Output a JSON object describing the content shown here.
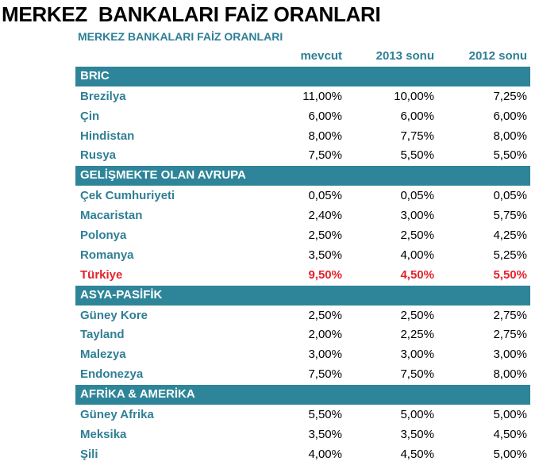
{
  "page_title": "MERKEZ  BANKALARI FAİZ ORANLARI",
  "table_title": "MERKEZ BANKALARI FAİZ ORANLARI",
  "columns": [
    "mevcut",
    "2013 sonu",
    "2012 sonu"
  ],
  "colors": {
    "header_band": "#2e8599",
    "label_text": "#2f7f95",
    "highlight": "#e5222b"
  },
  "groups": [
    {
      "name": "BRIC",
      "rows": [
        {
          "country": "Brezilya",
          "values": [
            "11,00%",
            "10,00%",
            "7,25%"
          ]
        },
        {
          "country": "Çin",
          "values": [
            "6,00%",
            "6,00%",
            "6,00%"
          ]
        },
        {
          "country": "Hindistan",
          "values": [
            "8,00%",
            "7,75%",
            "8,00%"
          ]
        },
        {
          "country": "Rusya",
          "values": [
            "7,50%",
            "5,50%",
            "5,50%"
          ]
        }
      ]
    },
    {
      "name": "GELİŞMEKTE OLAN AVRUPA",
      "rows": [
        {
          "country": "Çek Cumhuriyeti",
          "values": [
            "0,05%",
            "0,05%",
            "0,05%"
          ]
        },
        {
          "country": "Macaristan",
          "values": [
            "2,40%",
            "3,00%",
            "5,75%"
          ]
        },
        {
          "country": "Polonya",
          "values": [
            "2,50%",
            "2,50%",
            "4,25%"
          ]
        },
        {
          "country": "Romanya",
          "values": [
            "3,50%",
            "4,00%",
            "5,25%"
          ]
        },
        {
          "country": "Türkiye",
          "values": [
            "9,50%",
            "4,50%",
            "5,50%"
          ],
          "highlight": true
        }
      ]
    },
    {
      "name": "ASYA-PASİFİK",
      "rows": [
        {
          "country": "Güney Kore",
          "values": [
            "2,50%",
            "2,50%",
            "2,75%"
          ]
        },
        {
          "country": "Tayland",
          "values": [
            "2,00%",
            "2,25%",
            "2,75%"
          ]
        },
        {
          "country": "Malezya",
          "values": [
            "3,00%",
            "3,00%",
            "3,00%"
          ]
        },
        {
          "country": "Endonezya",
          "values": [
            "7,50%",
            "7,50%",
            "8,00%"
          ]
        }
      ]
    },
    {
      "name": "AFRİKA & AMERİKA",
      "rows": [
        {
          "country": "Güney Afrika",
          "values": [
            "5,50%",
            "5,00%",
            "5,00%"
          ]
        },
        {
          "country": "Meksika",
          "values": [
            "3,50%",
            "3,50%",
            "4,50%"
          ]
        },
        {
          "country": "Şili",
          "values": [
            "4,00%",
            "4,50%",
            "5,00%"
          ]
        }
      ]
    }
  ]
}
